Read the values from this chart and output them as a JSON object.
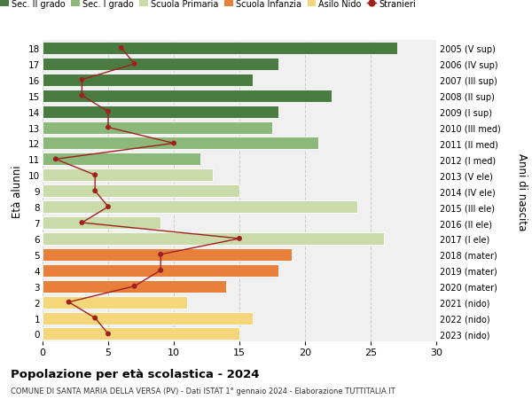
{
  "ages": [
    0,
    1,
    2,
    3,
    4,
    5,
    6,
    7,
    8,
    9,
    10,
    11,
    12,
    13,
    14,
    15,
    16,
    17,
    18
  ],
  "right_labels": [
    "2023 (nido)",
    "2022 (nido)",
    "2021 (nido)",
    "2020 (mater)",
    "2019 (mater)",
    "2018 (mater)",
    "2017 (I ele)",
    "2016 (II ele)",
    "2015 (III ele)",
    "2014 (IV ele)",
    "2013 (V ele)",
    "2012 (I med)",
    "2011 (II med)",
    "2010 (III med)",
    "2009 (I sup)",
    "2008 (II sup)",
    "2007 (III sup)",
    "2006 (IV sup)",
    "2005 (V sup)"
  ],
  "bar_values": [
    15,
    16,
    11,
    14,
    18,
    19,
    26,
    9,
    24,
    15,
    13,
    12,
    21,
    17.5,
    18,
    22,
    16,
    18,
    27
  ],
  "stranieri": [
    5,
    4,
    2,
    7,
    9,
    9,
    15,
    3,
    5,
    4,
    4,
    1,
    10,
    5,
    5,
    3,
    3,
    7,
    6
  ],
  "bar_colors": [
    "#f5d67a",
    "#f5d67a",
    "#f5d67a",
    "#e87f3a",
    "#e87f3a",
    "#e87f3a",
    "#c8dba8",
    "#c8dba8",
    "#c8dba8",
    "#c8dba8",
    "#c8dba8",
    "#8cb87a",
    "#8cb87a",
    "#8cb87a",
    "#4a7c42",
    "#4a7c42",
    "#4a7c42",
    "#4a7c42",
    "#4a7c42"
  ],
  "legend_labels": [
    "Sec. II grado",
    "Sec. I grado",
    "Scuola Primaria",
    "Scuola Infanzia",
    "Asilo Nido",
    "Stranieri"
  ],
  "legend_colors_list": [
    "#4a7c42",
    "#8cb87a",
    "#c8dba8",
    "#e87f3a",
    "#f5d67a",
    "#a02020"
  ],
  "stranieri_color": "#a02020",
  "title": "Popolazione per età scolastica - 2024",
  "subtitle": "COMUNE DI SANTA MARIA DELLA VERSA (PV) - Dati ISTAT 1° gennaio 2024 - Elaborazione TUTTITALIA.IT",
  "ylabel_left": "Età alunni",
  "ylabel_right": "Anni di nascita",
  "xlim": [
    0,
    30
  ],
  "bg_color": "#ffffff",
  "bar_bg_color": "#f0f0f0",
  "grid_color": "#cccccc"
}
